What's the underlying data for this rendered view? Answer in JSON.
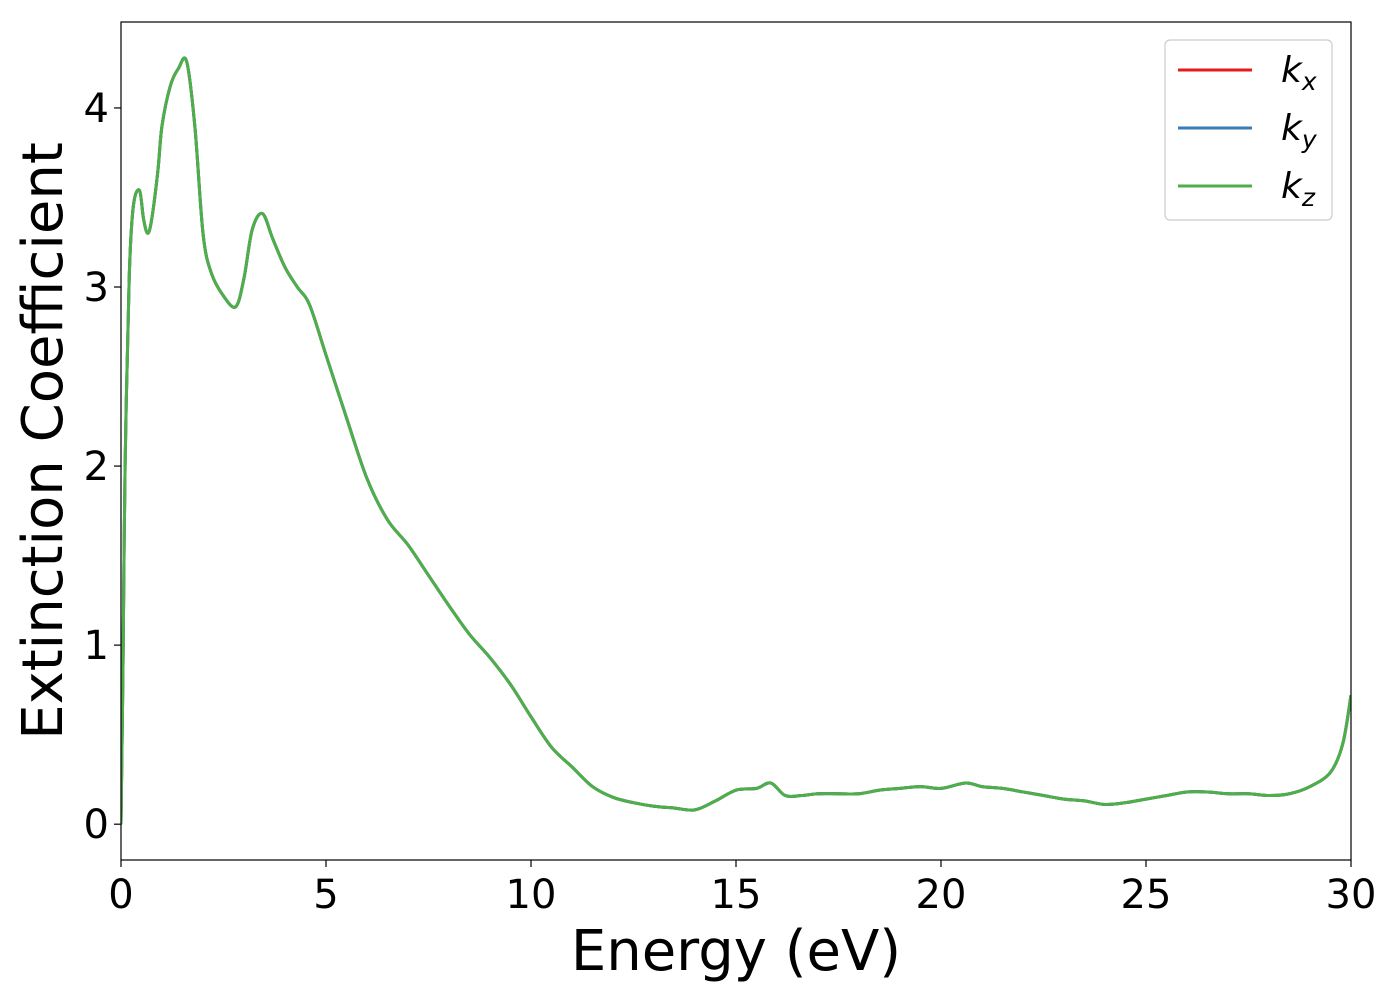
{
  "chart_data": {
    "type": "line",
    "title": "",
    "xlabel": "Energy (eV)",
    "ylabel": "Extinction Coefficient",
    "xlim": [
      0,
      30
    ],
    "ylim": [
      -0.2,
      4.48
    ],
    "xticks": [
      0,
      5,
      10,
      15,
      20,
      25,
      30
    ],
    "yticks": [
      0,
      1,
      2,
      3,
      4
    ],
    "grid": false,
    "legend_position": "top-right",
    "series": [
      {
        "name": "k_x",
        "label_main": "k",
        "label_sub": "x",
        "color": "#e41a1c",
        "x": [
          0,
          0.05,
          0.1,
          0.2,
          0.3,
          0.45,
          0.55,
          0.65,
          0.75,
          0.9,
          1.0,
          1.2,
          1.4,
          1.6,
          1.8,
          2.0,
          2.2,
          2.5,
          2.8,
          3.0,
          3.2,
          3.45,
          3.7,
          4.0,
          4.3,
          4.6,
          5.0,
          5.5,
          6.0,
          6.5,
          7.0,
          7.5,
          8.0,
          8.5,
          9.0,
          9.5,
          10.0,
          10.5,
          11.0,
          11.5,
          12.0,
          12.5,
          13.0,
          13.5,
          14.0,
          14.5,
          15.0,
          15.5,
          15.85,
          16.2,
          16.6,
          17.0,
          17.5,
          18.0,
          18.5,
          19.0,
          19.5,
          20.0,
          20.6,
          21.0,
          21.5,
          22.0,
          22.5,
          23.0,
          23.5,
          24.0,
          24.5,
          25.0,
          25.5,
          26.0,
          26.5,
          27.0,
          27.5,
          28.0,
          28.5,
          29.0,
          29.5,
          29.8,
          30.0
        ],
        "y": [
          0.0,
          0.9,
          2.0,
          3.05,
          3.45,
          3.54,
          3.38,
          3.3,
          3.38,
          3.65,
          3.9,
          4.12,
          4.22,
          4.26,
          3.9,
          3.3,
          3.08,
          2.95,
          2.89,
          3.05,
          3.32,
          3.41,
          3.27,
          3.11,
          3.0,
          2.9,
          2.62,
          2.27,
          1.93,
          1.7,
          1.56,
          1.39,
          1.22,
          1.06,
          0.93,
          0.78,
          0.6,
          0.43,
          0.32,
          0.21,
          0.15,
          0.12,
          0.1,
          0.09,
          0.08,
          0.13,
          0.19,
          0.2,
          0.23,
          0.16,
          0.16,
          0.17,
          0.17,
          0.17,
          0.19,
          0.2,
          0.21,
          0.2,
          0.23,
          0.21,
          0.2,
          0.18,
          0.16,
          0.14,
          0.13,
          0.11,
          0.12,
          0.14,
          0.16,
          0.18,
          0.18,
          0.17,
          0.17,
          0.16,
          0.17,
          0.21,
          0.29,
          0.45,
          0.72
        ]
      },
      {
        "name": "k_y",
        "label_main": "k",
        "label_sub": "y",
        "color": "#377eb8",
        "x": [
          0,
          0.05,
          0.1,
          0.2,
          0.3,
          0.45,
          0.55,
          0.65,
          0.75,
          0.9,
          1.0,
          1.2,
          1.4,
          1.6,
          1.8,
          2.0,
          2.2,
          2.5,
          2.8,
          3.0,
          3.2,
          3.45,
          3.7,
          4.0,
          4.3,
          4.6,
          5.0,
          5.5,
          6.0,
          6.5,
          7.0,
          7.5,
          8.0,
          8.5,
          9.0,
          9.5,
          10.0,
          10.5,
          11.0,
          11.5,
          12.0,
          12.5,
          13.0,
          13.5,
          14.0,
          14.5,
          15.0,
          15.5,
          15.85,
          16.2,
          16.6,
          17.0,
          17.5,
          18.0,
          18.5,
          19.0,
          19.5,
          20.0,
          20.6,
          21.0,
          21.5,
          22.0,
          22.5,
          23.0,
          23.5,
          24.0,
          24.5,
          25.0,
          25.5,
          26.0,
          26.5,
          27.0,
          27.5,
          28.0,
          28.5,
          29.0,
          29.5,
          29.8,
          30.0
        ],
        "y": [
          0.0,
          0.9,
          2.0,
          3.05,
          3.45,
          3.54,
          3.38,
          3.3,
          3.38,
          3.65,
          3.9,
          4.12,
          4.22,
          4.26,
          3.9,
          3.3,
          3.08,
          2.95,
          2.89,
          3.05,
          3.32,
          3.41,
          3.27,
          3.11,
          3.0,
          2.9,
          2.62,
          2.27,
          1.93,
          1.7,
          1.56,
          1.39,
          1.22,
          1.06,
          0.93,
          0.78,
          0.6,
          0.43,
          0.32,
          0.21,
          0.15,
          0.12,
          0.1,
          0.09,
          0.08,
          0.13,
          0.19,
          0.2,
          0.23,
          0.16,
          0.16,
          0.17,
          0.17,
          0.17,
          0.19,
          0.2,
          0.21,
          0.2,
          0.23,
          0.21,
          0.2,
          0.18,
          0.16,
          0.14,
          0.13,
          0.11,
          0.12,
          0.14,
          0.16,
          0.18,
          0.18,
          0.17,
          0.17,
          0.16,
          0.17,
          0.21,
          0.29,
          0.45,
          0.72
        ]
      },
      {
        "name": "k_z",
        "label_main": "k",
        "label_sub": "z",
        "color": "#4daf4a",
        "x": [
          0,
          0.05,
          0.1,
          0.2,
          0.3,
          0.45,
          0.55,
          0.65,
          0.75,
          0.9,
          1.0,
          1.2,
          1.4,
          1.6,
          1.8,
          2.0,
          2.2,
          2.5,
          2.8,
          3.0,
          3.2,
          3.45,
          3.7,
          4.0,
          4.3,
          4.6,
          5.0,
          5.5,
          6.0,
          6.5,
          7.0,
          7.5,
          8.0,
          8.5,
          9.0,
          9.5,
          10.0,
          10.5,
          11.0,
          11.5,
          12.0,
          12.5,
          13.0,
          13.5,
          14.0,
          14.5,
          15.0,
          15.5,
          15.85,
          16.2,
          16.6,
          17.0,
          17.5,
          18.0,
          18.5,
          19.0,
          19.5,
          20.0,
          20.6,
          21.0,
          21.5,
          22.0,
          22.5,
          23.0,
          23.5,
          24.0,
          24.5,
          25.0,
          25.5,
          26.0,
          26.5,
          27.0,
          27.5,
          28.0,
          28.5,
          29.0,
          29.5,
          29.8,
          30.0
        ],
        "y": [
          0.0,
          0.9,
          2.0,
          3.05,
          3.45,
          3.54,
          3.38,
          3.3,
          3.38,
          3.65,
          3.9,
          4.12,
          4.22,
          4.26,
          3.9,
          3.3,
          3.08,
          2.95,
          2.89,
          3.05,
          3.32,
          3.41,
          3.27,
          3.11,
          3.0,
          2.9,
          2.62,
          2.27,
          1.93,
          1.7,
          1.56,
          1.39,
          1.22,
          1.06,
          0.93,
          0.78,
          0.6,
          0.43,
          0.32,
          0.21,
          0.15,
          0.12,
          0.1,
          0.09,
          0.08,
          0.13,
          0.19,
          0.2,
          0.23,
          0.16,
          0.16,
          0.17,
          0.17,
          0.17,
          0.19,
          0.2,
          0.21,
          0.2,
          0.23,
          0.21,
          0.2,
          0.18,
          0.16,
          0.14,
          0.13,
          0.11,
          0.12,
          0.14,
          0.16,
          0.18,
          0.18,
          0.17,
          0.17,
          0.16,
          0.17,
          0.21,
          0.29,
          0.45,
          0.72
        ]
      }
    ]
  }
}
